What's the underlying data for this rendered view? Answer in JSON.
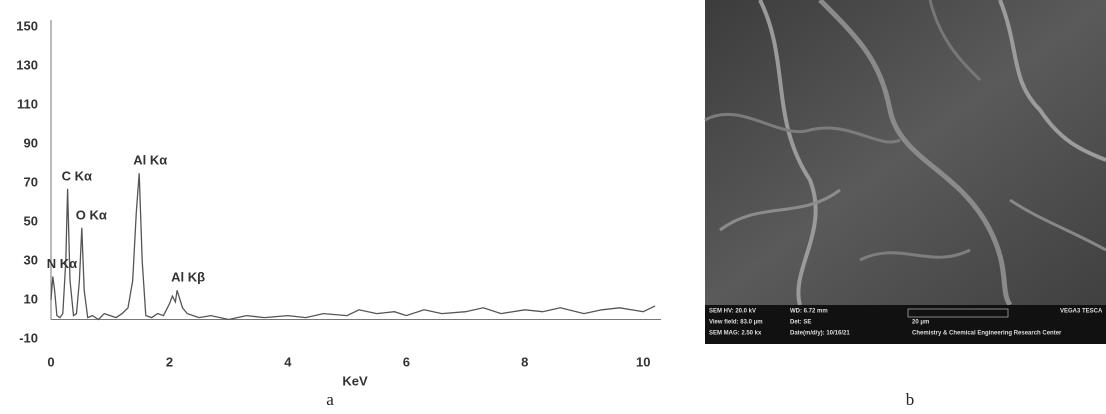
{
  "chart_data": {
    "type": "line",
    "color": "#555555",
    "x_label": "KeV",
    "x": [
      0,
      0.03,
      0.06,
      0.1,
      0.15,
      0.2,
      0.25,
      0.28,
      0.32,
      0.38,
      0.43,
      0.48,
      0.52,
      0.56,
      0.62,
      0.7,
      0.8,
      0.9,
      1.0,
      1.1,
      1.2,
      1.3,
      1.38,
      1.44,
      1.49,
      1.54,
      1.6,
      1.7,
      1.8,
      1.9,
      2.0,
      2.05,
      2.1,
      2.13,
      2.17,
      2.22,
      2.3,
      2.4,
      2.5,
      2.7,
      3.0,
      3.3,
      3.6,
      4.0,
      4.3,
      4.6,
      5.0,
      5.2,
      5.5,
      5.8,
      6.0,
      6.3,
      6.6,
      7.0,
      7.3,
      7.6,
      8.0,
      8.3,
      8.6,
      9.0,
      9.3,
      9.6,
      10.0,
      10.2
    ],
    "values": [
      10,
      22,
      15,
      2,
      1,
      3,
      30,
      67,
      20,
      2,
      3,
      20,
      47,
      15,
      1,
      2,
      0,
      3,
      2,
      1,
      3,
      6,
      20,
      55,
      75,
      30,
      2,
      1,
      3,
      2,
      8,
      12,
      9,
      15,
      11,
      6,
      3,
      2,
      1,
      2,
      0,
      2,
      1,
      2,
      1,
      3,
      2,
      5,
      3,
      4,
      2,
      5,
      3,
      4,
      6,
      3,
      5,
      4,
      6,
      3,
      5,
      6,
      4,
      7
    ],
    "xlim": [
      0,
      10.3
    ],
    "xticks": [
      0,
      2,
      4,
      6,
      8,
      10
    ],
    "ylim": [
      -10,
      150
    ],
    "yticks": [
      -10,
      10,
      30,
      50,
      70,
      90,
      110,
      130,
      150
    ],
    "annotations": [
      {
        "text": "N Kα",
        "x": 0.03,
        "y": 22
      },
      {
        "text": "C Kα",
        "x": 0.28,
        "y": 67
      },
      {
        "text": "O Kα",
        "x": 0.52,
        "y": 47
      },
      {
        "text": "Al Kα",
        "x": 1.49,
        "y": 75
      },
      {
        "text": "Al Kβ",
        "x": 2.13,
        "y": 15
      }
    ]
  },
  "image": {
    "info": [
      "SEM HV: 20.0 kV",
      "WD: 6.72 mm",
      "VEGA3 TESCA",
      "View field: 83.0 μm",
      "Det: SE",
      "20 μm",
      "SEM MAG: 2.50 kx",
      "Date(m/d/y): 10/16/21",
      "Chemistry & Chemical Engineering Research Center"
    ]
  },
  "captions": [
    "a",
    "b"
  ]
}
